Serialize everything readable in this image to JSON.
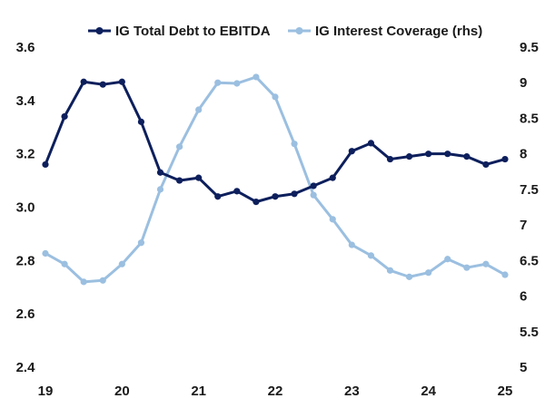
{
  "chart_data": {
    "type": "line",
    "title": "",
    "xlabel": "",
    "ylabel": "",
    "y2label": "",
    "x": [
      19,
      19.25,
      19.5,
      19.75,
      20,
      20.25,
      20.5,
      20.75,
      21,
      21.25,
      21.5,
      21.75,
      22,
      22.25,
      22.5,
      22.75,
      23,
      23.25,
      23.5,
      23.75,
      24,
      24.25,
      24.5,
      24.75,
      25
    ],
    "xlim": [
      19,
      25
    ],
    "x_ticks": [
      "19",
      "20",
      "21",
      "22",
      "23",
      "24",
      "25"
    ],
    "ylim": [
      2.4,
      3.6
    ],
    "y_ticks": [
      "2.4",
      "2.6",
      "2.8",
      "3.0",
      "3.2",
      "3.4",
      "3.6"
    ],
    "y2lim": [
      5,
      9.5
    ],
    "y2_ticks": [
      "5",
      "5.5",
      "6",
      "6.5",
      "7",
      "7.5",
      "8",
      "8.5",
      "9",
      "9.5"
    ],
    "grid": false,
    "legend_position": "top",
    "series": [
      {
        "name": "IG Total Debt to EBITDA",
        "axis": "left",
        "color": "#0d1f5c",
        "values": [
          3.16,
          3.34,
          3.47,
          3.46,
          3.47,
          3.32,
          3.13,
          3.1,
          3.11,
          3.04,
          3.06,
          3.02,
          3.04,
          3.05,
          3.08,
          3.11,
          3.21,
          3.24,
          3.18,
          3.19,
          3.2,
          3.2,
          3.19,
          3.16,
          3.18
        ]
      },
      {
        "name": "IG Interest Coverage (rhs)",
        "axis": "right",
        "color": "#9bbfe0",
        "values": [
          6.6,
          6.45,
          6.2,
          6.22,
          6.45,
          6.75,
          7.5,
          8.1,
          8.62,
          9.0,
          8.99,
          9.08,
          8.8,
          8.14,
          7.42,
          7.08,
          6.72,
          6.57,
          6.36,
          6.27,
          6.33,
          6.52,
          6.4,
          6.45,
          6.3
        ]
      }
    ]
  }
}
